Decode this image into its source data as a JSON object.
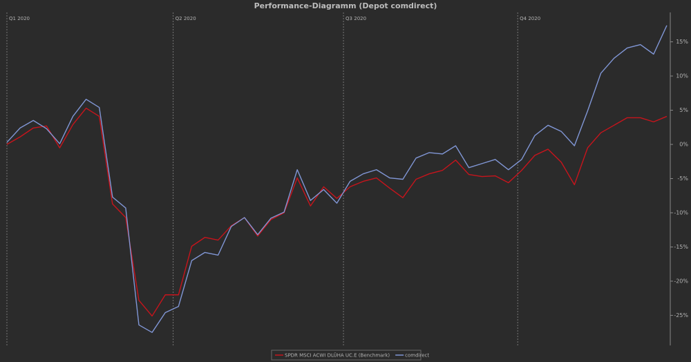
{
  "chart_data": {
    "type": "line",
    "title": "Performance-Diagramm (Depot comdirect)",
    "x": [
      0,
      1,
      2,
      3,
      4,
      5,
      6,
      7,
      8,
      9,
      10,
      11,
      12,
      13,
      14,
      15,
      16,
      17,
      18,
      19,
      20,
      21,
      22,
      23,
      24,
      25,
      26,
      27,
      28,
      29,
      30,
      31,
      32,
      33,
      34,
      35,
      36,
      37,
      38,
      39,
      40,
      41,
      42,
      43,
      44,
      45,
      46,
      47,
      48,
      49,
      50
    ],
    "xlim": [
      0,
      50
    ],
    "xticks": [
      {
        "value": 0,
        "label": "Q1 2020"
      },
      {
        "value": 12.6,
        "label": "Q2 2020"
      },
      {
        "value": 25.5,
        "label": "Q3 2020"
      },
      {
        "value": 38.7,
        "label": "Q4 2020"
      }
    ],
    "ylim": [
      -29.4,
      19.3
    ],
    "yticks": [
      {
        "value": 15,
        "label": "15%"
      },
      {
        "value": 10,
        "label": "10%"
      },
      {
        "value": 5,
        "label": "5%"
      },
      {
        "value": 0,
        "label": "0%"
      },
      {
        "value": -5,
        "label": "-5%"
      },
      {
        "value": -10,
        "label": "-10%"
      },
      {
        "value": -15,
        "label": "-15%"
      },
      {
        "value": -20,
        "label": "-20%"
      },
      {
        "value": -25,
        "label": "-25%"
      }
    ],
    "grid": "x",
    "legend": "bottom",
    "series": [
      {
        "name": "SPDR MSCI ACWI DLÜHA UC.E (Benchmark)",
        "color": "#c8141c",
        "values": [
          0,
          1.1,
          2.4,
          2.7,
          -0.5,
          2.9,
          5.3,
          4.1,
          -8.7,
          -10.7,
          -22.8,
          -25.1,
          -22.0,
          -22.0,
          -14.9,
          -13.6,
          -14.0,
          -11.9,
          -10.7,
          -13.4,
          -11.0,
          -10.0,
          -4.9,
          -9.0,
          -6.2,
          -7.9,
          -6.2,
          -5.4,
          -4.9,
          -6.4,
          -7.8,
          -5.1,
          -4.3,
          -3.8,
          -2.3,
          -4.4,
          -4.7,
          -4.6,
          -5.6,
          -3.8,
          -1.6,
          -0.7,
          -2.6,
          -5.9,
          -0.5,
          1.7,
          2.8,
          3.9,
          3.9,
          3.3,
          4.1
        ]
      },
      {
        "name": "comdirect",
        "color": "#8197d6",
        "values": [
          0.3,
          2.4,
          3.5,
          2.3,
          0.1,
          4.1,
          6.6,
          5.4,
          -7.7,
          -9.3,
          -26.4,
          -27.5,
          -24.6,
          -23.7,
          -17.0,
          -15.8,
          -16.2,
          -12.0,
          -10.7,
          -13.2,
          -10.8,
          -9.9,
          -3.7,
          -8.2,
          -6.6,
          -8.6,
          -5.4,
          -4.3,
          -3.7,
          -4.9,
          -5.1,
          -2.0,
          -1.2,
          -1.4,
          -0.2,
          -3.4,
          -2.8,
          -2.2,
          -3.7,
          -2.2,
          1.3,
          2.8,
          1.9,
          -0.2,
          4.9,
          10.4,
          12.6,
          14.1,
          14.6,
          13.2,
          17.4
        ]
      }
    ]
  }
}
